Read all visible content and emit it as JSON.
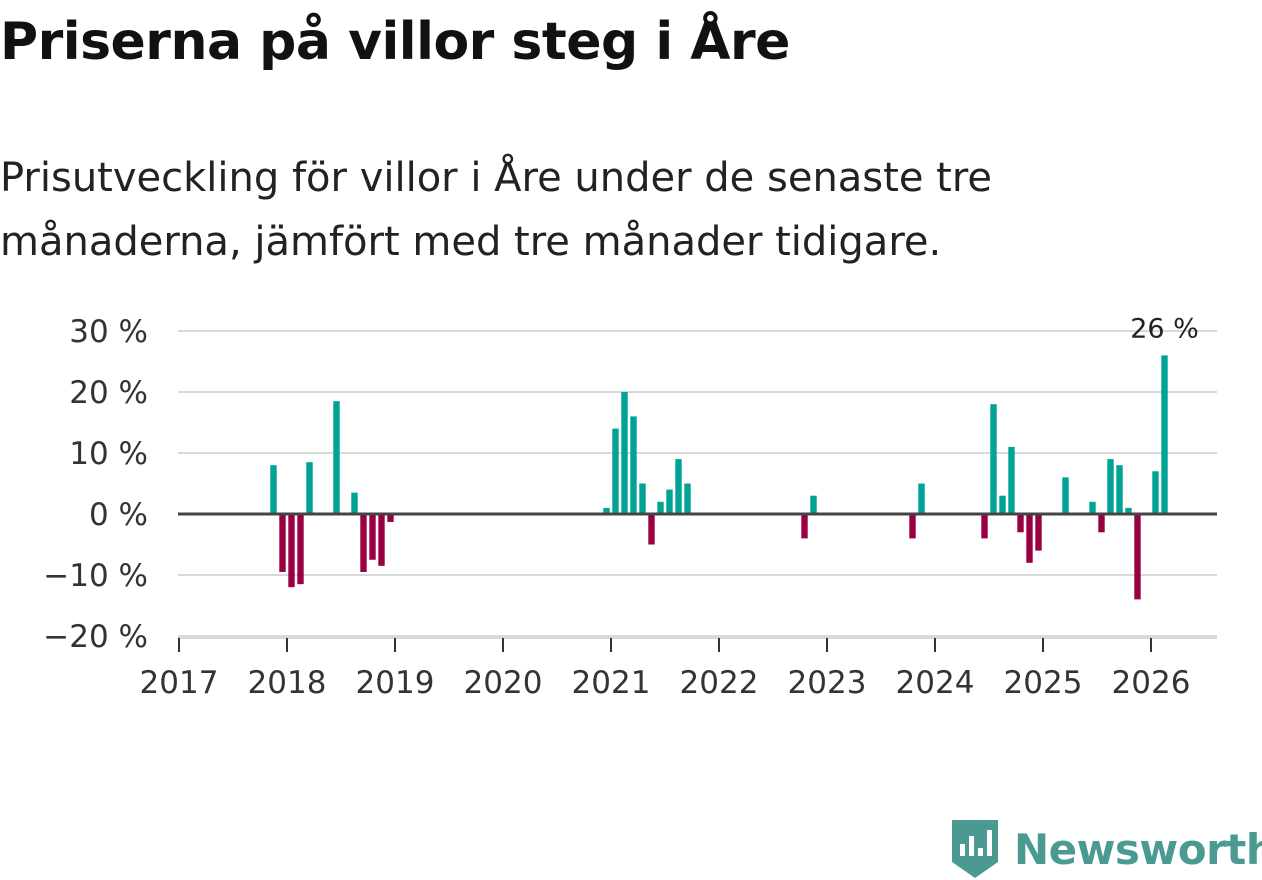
{
  "title": "Priserna på villor steg i Åre",
  "subtitle": "Prisutveckling för villor i Åre under de senaste tre månaderna, jämfört med tre månader tidigare.",
  "brand": {
    "name": "Newsworthy",
    "icon": "newsworthy-logo-icon",
    "color": "#4a9a92"
  },
  "colors": {
    "positive": "#00a396",
    "negative": "#990044",
    "grid": "#d9d9d9",
    "zero_line": "#444444",
    "axis": "#333333"
  },
  "chart_data": {
    "type": "bar",
    "title": "Priserna på villor steg i Åre",
    "xlabel": "",
    "ylabel": "",
    "x_range": [
      "2017-01",
      "2026-07"
    ],
    "ylim": [
      -20,
      30
    ],
    "y_ticks": [
      -20,
      -10,
      0,
      10,
      20,
      30
    ],
    "y_tick_labels": [
      "−20 %",
      "−10 %",
      "0 %",
      "10 %",
      "20 %",
      "30 %"
    ],
    "x_ticks": [
      "2017",
      "2018",
      "2019",
      "2020",
      "2021",
      "2022",
      "2023",
      "2024",
      "2025",
      "2026"
    ],
    "grid": true,
    "annotation": {
      "date": "2026-02",
      "value": 26,
      "label": "26 %"
    },
    "series": [
      {
        "name": "Prisutveckling",
        "points": [
          {
            "date": "2017-11",
            "value": 8
          },
          {
            "date": "2017-12",
            "value": -9.5
          },
          {
            "date": "2018-01",
            "value": -12
          },
          {
            "date": "2018-02",
            "value": -11.5
          },
          {
            "date": "2018-03",
            "value": 8.5
          },
          {
            "date": "2018-06",
            "value": 18.5
          },
          {
            "date": "2018-08",
            "value": 3.5
          },
          {
            "date": "2018-09",
            "value": -9.5
          },
          {
            "date": "2018-10",
            "value": -7.5
          },
          {
            "date": "2018-11",
            "value": -8.5
          },
          {
            "date": "2018-12",
            "value": -1.3
          },
          {
            "date": "2020-12",
            "value": 1
          },
          {
            "date": "2021-01",
            "value": 14
          },
          {
            "date": "2021-02",
            "value": 20
          },
          {
            "date": "2021-03",
            "value": 16
          },
          {
            "date": "2021-04",
            "value": 5
          },
          {
            "date": "2021-05",
            "value": -5
          },
          {
            "date": "2021-06",
            "value": 2
          },
          {
            "date": "2021-07",
            "value": 4
          },
          {
            "date": "2021-08",
            "value": 9
          },
          {
            "date": "2021-09",
            "value": 5
          },
          {
            "date": "2022-10",
            "value": -4
          },
          {
            "date": "2022-11",
            "value": 3
          },
          {
            "date": "2023-10",
            "value": -4
          },
          {
            "date": "2023-11",
            "value": 5
          },
          {
            "date": "2024-06",
            "value": -4
          },
          {
            "date": "2024-07",
            "value": 18
          },
          {
            "date": "2024-08",
            "value": 3
          },
          {
            "date": "2024-09",
            "value": 11
          },
          {
            "date": "2024-10",
            "value": -3
          },
          {
            "date": "2024-11",
            "value": -8
          },
          {
            "date": "2024-12",
            "value": -6
          },
          {
            "date": "2025-03",
            "value": 6
          },
          {
            "date": "2025-06",
            "value": 2
          },
          {
            "date": "2025-07",
            "value": -3
          },
          {
            "date": "2025-08",
            "value": 9
          },
          {
            "date": "2025-09",
            "value": 8
          },
          {
            "date": "2025-10",
            "value": 1
          },
          {
            "date": "2025-11",
            "value": -14
          },
          {
            "date": "2026-01",
            "value": 7
          },
          {
            "date": "2026-02",
            "value": 26
          }
        ]
      }
    ]
  }
}
